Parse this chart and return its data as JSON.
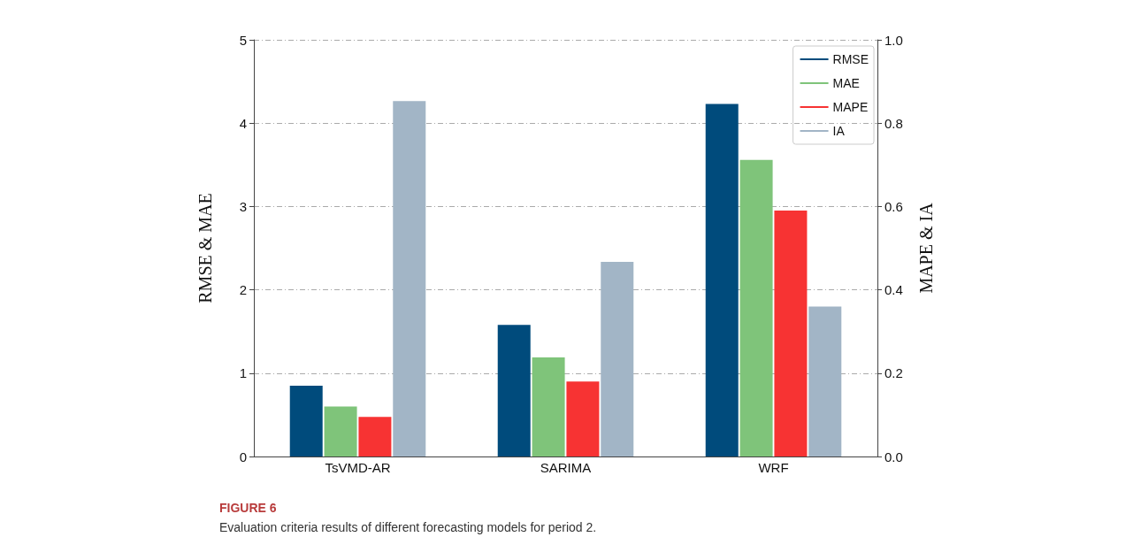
{
  "chart_data": {
    "type": "bar",
    "categories": [
      "TsVMD-AR",
      "SARIMA",
      "WRF"
    ],
    "series": [
      {
        "name": "RMSE",
        "color": "#004b7c",
        "values": [
          0.85,
          1.58,
          4.23
        ]
      },
      {
        "name": "MAE",
        "color": "#7fc47a",
        "values": [
          0.6,
          1.19,
          3.56
        ]
      },
      {
        "name": "MAPE",
        "color": "#f73333",
        "axis": "y2",
        "values": [
          0.095,
          0.18,
          0.59
        ]
      },
      {
        "name": "IA",
        "color": "#a2b5c6",
        "axis": "y2",
        "values": [
          0.853,
          0.467,
          0.36
        ]
      }
    ],
    "ylabel": "RMSE & MAE",
    "y2label": "MAPE & IA",
    "ylim": [
      0,
      5
    ],
    "yticks": [
      0,
      1,
      2,
      3,
      4,
      5
    ],
    "y2lim": [
      0,
      1
    ],
    "y2ticks": [
      {
        "value": 0,
        "label": "0.0"
      },
      {
        "value": 0.2,
        "label": "0.2"
      },
      {
        "value": 0.4,
        "label": "0.4"
      },
      {
        "value": 0.6,
        "label": "0.6"
      },
      {
        "value": 0.8,
        "label": "0.8"
      },
      {
        "value": 1,
        "label": "1.0"
      }
    ],
    "grid": "y",
    "legend": "top right",
    "annotations": [
      "FIGURE 6",
      "Evaluation criteria results of different forecasting models for period 2."
    ]
  }
}
